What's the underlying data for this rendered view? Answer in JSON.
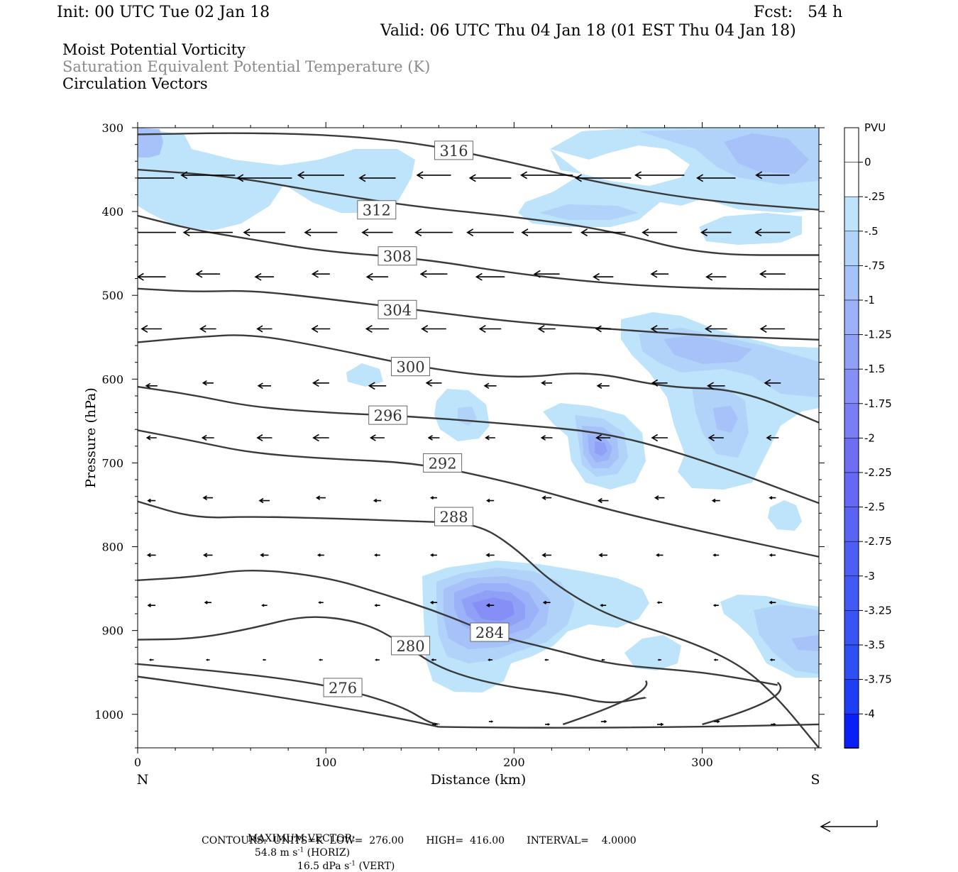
{
  "header": {
    "init": "Init: 00 UTC Tue 02 Jan 18",
    "fcst": "Fcst:   54 h",
    "valid": "Valid: 06 UTC Thu 04 Jan 18 (01 EST Thu 04 Jan 18)"
  },
  "legend": {
    "line1": "Moist Potential Vorticity",
    "line2": "Saturation Equivalent Potential Temperature (K)",
    "line3": "Circulation Vectors"
  },
  "footer": {
    "max_vector_label": "MAXIMUM VECTOR:",
    "max_horiz": "54.8 m s",
    "max_horiz_exp": "-1",
    "max_horiz_tail": " (HORIZ)",
    "max_vert": "16.5 dPa s",
    "max_vert_exp": "-1",
    "max_vert_tail": " (VERT)",
    "contours": "CONTOURS:  UNITS=K  LOW=  276.00       HIGH=  416.00       INTERVAL=    4.0000"
  },
  "colors": {
    "contour": "#3a3a3a",
    "pv_levels": [
      "#bde4fa",
      "#b1d3fa",
      "#a6c2f9",
      "#9bb1f8",
      "#90a0f7",
      "#858ff6",
      "#7a7ef5",
      "#6f6df4",
      "#6468f4",
      "#5963f4",
      "#4e5ef4",
      "#4359f4",
      "#3854f4",
      "#2d4ff4",
      "#1e3ef6",
      "#0a1ff8"
    ]
  },
  "chart_data": {
    "type": "cross-section",
    "xlabel": "Distance (km)",
    "ylabel": "Pressure (hPa)",
    "xlim": [
      0,
      362
    ],
    "ylim": [
      1040,
      300
    ],
    "xticks": [
      "0",
      "100",
      "200",
      "300"
    ],
    "yticks": [
      "300",
      "400",
      "500",
      "600",
      "700",
      "800",
      "900",
      "1000"
    ],
    "x_end_labels": {
      "left": "N",
      "right": "S"
    },
    "colorbar": {
      "unit": "PVU",
      "labels": [
        "0",
        "-.25",
        "-.5",
        "-.75",
        "-1",
        "-1.25",
        "-1.5",
        "-1.75",
        "-2",
        "-2.25",
        "-2.5",
        "-2.75",
        "-3",
        "-3.25",
        "-3.5",
        "-3.75",
        "-4"
      ]
    },
    "contour_labels": [
      {
        "text": "316",
        "x": 168,
        "p": 327
      },
      {
        "text": "312",
        "x": 127,
        "p": 398
      },
      {
        "text": "308",
        "x": 138,
        "p": 453
      },
      {
        "text": "304",
        "x": 138,
        "p": 517
      },
      {
        "text": "300",
        "x": 145,
        "p": 585
      },
      {
        "text": "296",
        "x": 133,
        "p": 643
      },
      {
        "text": "292",
        "x": 162,
        "p": 700
      },
      {
        "text": "288",
        "x": 168,
        "p": 764
      },
      {
        "text": "284",
        "x": 187,
        "p": 902
      },
      {
        "text": "280",
        "x": 145,
        "p": 918
      },
      {
        "text": "276",
        "x": 109,
        "p": 968
      }
    ],
    "series": [
      {
        "name": "316",
        "x": [
          0,
          50,
          100,
          150,
          200,
          250,
          300,
          362
        ],
        "y": [
          308,
          306,
          308,
          318,
          342,
          368,
          387,
          398
        ]
      },
      {
        "name": "312",
        "x": [
          0,
          50,
          100,
          150,
          200,
          250,
          300,
          362
        ],
        "y": [
          350,
          358,
          378,
          395,
          406,
          422,
          452,
          452
        ]
      },
      {
        "name": "308",
        "x": [
          0,
          30,
          60,
          100,
          150,
          200,
          250,
          300,
          362
        ],
        "y": [
          405,
          422,
          433,
          448,
          456,
          474,
          486,
          492,
          493
        ]
      },
      {
        "name": "304",
        "x": [
          0,
          30,
          60,
          100,
          150,
          200,
          250,
          300,
          362
        ],
        "y": [
          492,
          496,
          494,
          504,
          518,
          532,
          540,
          548,
          553
        ]
      },
      {
        "name": "300",
        "x": [
          0,
          30,
          60,
          100,
          150,
          200,
          240,
          280,
          320,
          362
        ],
        "y": [
          556,
          550,
          546,
          562,
          586,
          600,
          590,
          610,
          612,
          652
        ]
      },
      {
        "name": "296",
        "x": [
          0,
          30,
          60,
          100,
          150,
          200,
          250,
          300,
          362
        ],
        "y": [
          609,
          619,
          633,
          640,
          645,
          654,
          664,
          696,
          748
        ]
      },
      {
        "name": "292",
        "x": [
          0,
          30,
          60,
          100,
          150,
          200,
          250,
          300,
          362
        ],
        "y": [
          661,
          674,
          688,
          695,
          700,
          724,
          756,
          782,
          812
        ]
      },
      {
        "name": "288",
        "x": [
          0,
          30,
          60,
          100,
          150,
          180,
          200,
          220,
          250,
          290,
          320,
          340,
          362
        ],
        "y": [
          746,
          766,
          764,
          766,
          770,
          772,
          800,
          843,
          883,
          910,
          940,
          980,
          1040
        ]
      },
      {
        "name": "284",
        "x": [
          0,
          30,
          60,
          100,
          130,
          160,
          190,
          220,
          250,
          280,
          300,
          320,
          340
        ],
        "y": [
          840,
          836,
          826,
          836,
          856,
          878,
          906,
          922,
          940,
          946,
          950,
          957,
          965
        ]
      },
      {
        "name": "280",
        "x": [
          0,
          30,
          60,
          90,
          120,
          140,
          160,
          190,
          230,
          250,
          270
        ],
        "y": [
          911,
          910,
          898,
          881,
          890,
          914,
          945,
          965,
          977,
          988,
          980
        ]
      },
      {
        "name": "276",
        "x": [
          0,
          40,
          80,
          110,
          140,
          155,
          160
        ],
        "y": [
          940,
          948,
          958,
          970,
          990,
          1010,
          1012
        ]
      }
    ],
    "vectors_horizontal_max": "54.8",
    "vectors_vertical_max": "16.5"
  }
}
